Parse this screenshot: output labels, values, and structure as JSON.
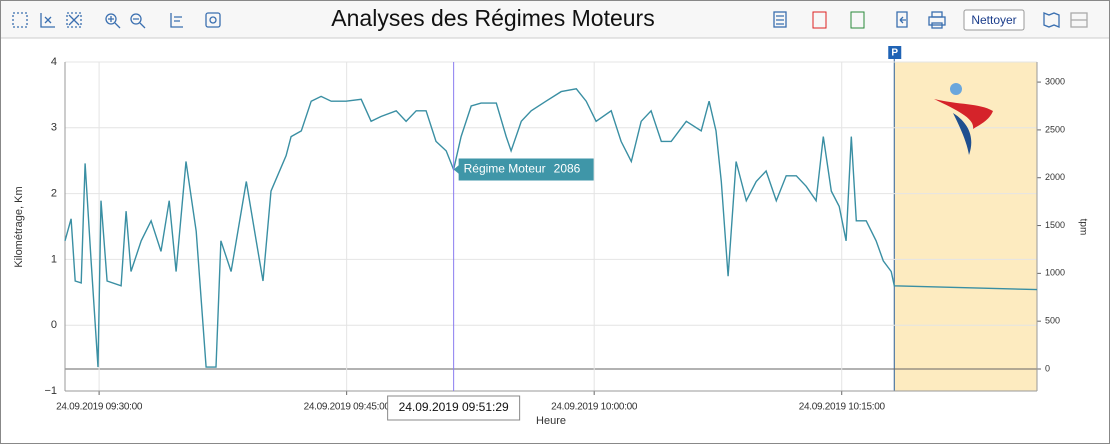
{
  "chart_data": {
    "type": "line",
    "title": "Analyses des Régimes Moteurs",
    "button": "Nettoyer",
    "x_label": "Heure",
    "y_label": "Kilométrage, Km",
    "y2_label": "tpm",
    "xlim": [
      "2019-09-24T09:27:56",
      "2019-09-24T10:26:50"
    ],
    "xticks": [
      {
        "value": "2019-09-24T09:30:00",
        "label": "24.09.2019 09:30:00"
      },
      {
        "value": "2019-09-24T09:45:00",
        "label": "24.09.2019 09:45:00"
      },
      {
        "value": "2019-09-24T10:00:00",
        "label": "24.09.2019 10:00:00"
      },
      {
        "value": "2019-09-24T10:15:00",
        "label": "24.09.2019 10:15:00"
      }
    ],
    "ylim": [
      -1,
      4
    ],
    "yticks": [
      {
        "value": -1,
        "label": "−1"
      },
      0,
      1,
      2,
      3,
      4
    ],
    "y2lim": [
      -230,
      3210
    ],
    "y2ticks": [
      0,
      500,
      1000,
      1500,
      2000,
      2500,
      3000
    ],
    "grid": true,
    "x": [
      "2019-09-24T09:27:56",
      "2019-09-24T09:28:18",
      "2019-09-24T09:28:33",
      "2019-09-24T09:28:55",
      "2019-09-24T09:29:09",
      "2019-09-24T09:29:31",
      "2019-09-24T09:29:56",
      "2019-09-24T09:30:07",
      "2019-09-24T09:30:29",
      "2019-09-24T09:31:20",
      "2019-09-24T09:31:38",
      "2019-09-24T09:31:56",
      "2019-09-24T09:32:33",
      "2019-09-24T09:33:09",
      "2019-09-24T09:33:45",
      "2019-09-24T09:34:15",
      "2019-09-24T09:34:40",
      "2019-09-24T09:35:16",
      "2019-09-24T09:35:53",
      "2019-09-24T09:36:29",
      "2019-09-24T09:37:05",
      "2019-09-24T09:37:23",
      "2019-09-24T09:38:00",
      "2019-09-24T09:38:55",
      "2019-09-24T09:39:31",
      "2019-09-24T09:39:56",
      "2019-09-24T09:40:25",
      "2019-09-24T09:41:20",
      "2019-09-24T09:41:38",
      "2019-09-24T09:42:15",
      "2019-09-24T09:42:51",
      "2019-09-24T09:43:27",
      "2019-09-24T09:44:04",
      "2019-09-24T09:44:58",
      "2019-09-24T09:45:53",
      "2019-09-24T09:46:29",
      "2019-09-24T09:47:05",
      "2019-09-24T09:48:00",
      "2019-09-24T09:48:36",
      "2019-09-24T09:49:13",
      "2019-09-24T09:49:49",
      "2019-09-24T09:50:25",
      "2019-09-24T09:51:02",
      "2019-09-24T09:51:29",
      "2019-09-24T09:51:56",
      "2019-09-24T09:52:33",
      "2019-09-24T09:53:09",
      "2019-09-24T09:54:04",
      "2019-09-24T09:54:40",
      "2019-09-24T09:54:58",
      "2019-09-24T09:55:35",
      "2019-09-24T09:56:11",
      "2019-09-24T09:57:05",
      "2019-09-24T09:58:00",
      "2019-09-24T09:58:55",
      "2019-09-24T09:59:31",
      "2019-09-24T10:00:07",
      "2019-09-24T10:01:02",
      "2019-09-24T10:01:38",
      "2019-09-24T10:02:15",
      "2019-09-24T10:02:51",
      "2019-09-24T10:03:27",
      "2019-09-24T10:04:04",
      "2019-09-24T10:04:40",
      "2019-09-24T10:05:35",
      "2019-09-24T10:06:29",
      "2019-09-24T10:06:58",
      "2019-09-24T10:07:23",
      "2019-09-24T10:07:42",
      "2019-09-24T10:08:07",
      "2019-09-24T10:08:36",
      "2019-09-24T10:09:13",
      "2019-09-24T10:09:49",
      "2019-09-24T10:10:25",
      "2019-09-24T10:11:02",
      "2019-09-24T10:11:38",
      "2019-09-24T10:12:15",
      "2019-09-24T10:12:51",
      "2019-09-24T10:13:27",
      "2019-09-24T10:13:53",
      "2019-09-24T10:14:22",
      "2019-09-24T10:14:51",
      "2019-09-24T10:15:16",
      "2019-09-24T10:15:35",
      "2019-09-24T10:15:53",
      "2019-09-24T10:16:29",
      "2019-09-24T10:17:05",
      "2019-09-24T10:17:31",
      "2019-09-24T10:18:00",
      "2019-09-24T10:18:11",
      "2019-09-24T10:26:50"
    ],
    "series": [
      {
        "name": "Régime Moteur",
        "color": "#3a8fa3",
        "axis": "y2",
        "values": [
          1340,
          1570,
          920,
          900,
          2150,
          1130,
          20,
          1760,
          920,
          870,
          1650,
          1020,
          1340,
          1550,
          1230,
          1760,
          1020,
          2170,
          1440,
          20,
          20,
          1340,
          1020,
          1960,
          1340,
          920,
          1860,
          2230,
          2430,
          2490,
          2800,
          2850,
          2800,
          2800,
          2820,
          2590,
          2640,
          2700,
          2590,
          2700,
          2700,
          2380,
          2280,
          2086,
          2430,
          2750,
          2780,
          2780,
          2430,
          2280,
          2590,
          2700,
          2800,
          2900,
          2930,
          2800,
          2590,
          2700,
          2380,
          2170,
          2590,
          2700,
          2380,
          2380,
          2590,
          2490,
          2800,
          2490,
          1960,
          970,
          2170,
          1760,
          1960,
          2070,
          1760,
          2020,
          2020,
          1910,
          1760,
          2430,
          1860,
          1700,
          1340,
          2430,
          1550,
          1550,
          1340,
          1130,
          1020,
          870,
          830
        ]
      }
    ],
    "cursor": {
      "x": "2019-09-24T09:51:29",
      "label": "24.09.2019 09:51:29",
      "point": 43
    },
    "parking": {
      "label": "P",
      "start": "2019-09-24T10:18:11",
      "color": "#fdebc0"
    }
  }
}
